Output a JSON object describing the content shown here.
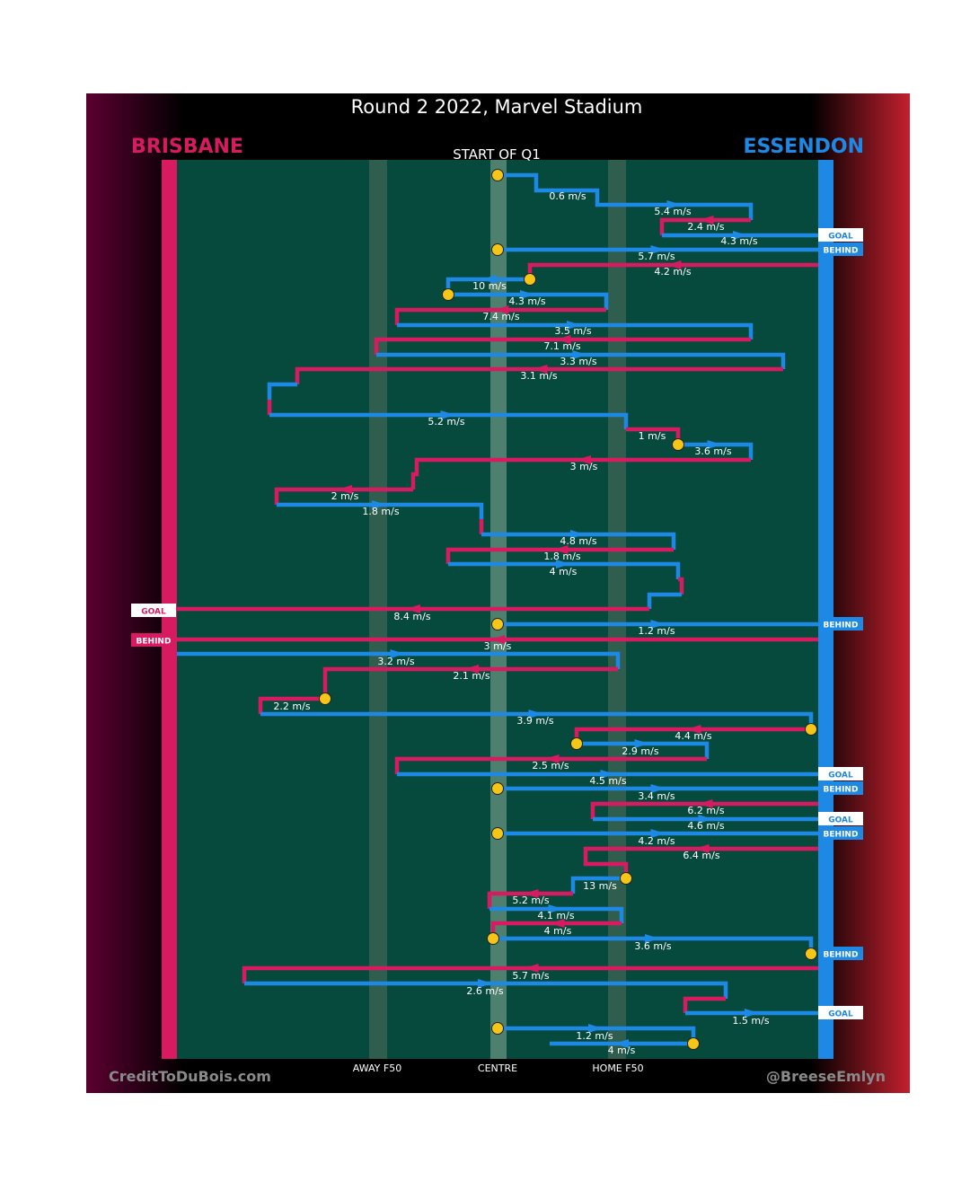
{
  "title": "Round 2 2022, Marvel Stadium",
  "teams": {
    "left": {
      "name": "BRISBANE",
      "color": "#d81b60"
    },
    "right": {
      "name": "ESSENDON",
      "color": "#1e88e5"
    }
  },
  "start_label": "START OF Q1",
  "field_labels": {
    "away_f50": "AWAY F50",
    "centre": "CENTRE",
    "home_f50": "HOME F50"
  },
  "footer": {
    "left": "CreditToDuBois.com",
    "right": "@BreeseEmlyn"
  },
  "colors": {
    "field": "#064a3e",
    "stripe": "#2f5e4e",
    "centre_stripe": "#4e8070",
    "marker": "#f5c518",
    "background": "#000000"
  },
  "chart_data": {
    "type": "line",
    "description_axes": {
      "x": "field position (Brisbane goal → Essendon goal)",
      "y": "chain sequence"
    },
    "x_reference": [
      "AWAY F50",
      "CENTRE",
      "HOME F50"
    ],
    "labels": [
      {
        "team": "ESS",
        "speed": "0.6 m/s"
      },
      {
        "team": "ESS",
        "speed": "5.4 m/s"
      },
      {
        "team": "BRI",
        "speed": "2.4 m/s"
      },
      {
        "team": "ESS",
        "speed": "4.3 m/s",
        "result": "GOAL"
      },
      {
        "team": "ESS",
        "speed": "5.7 m/s",
        "result": "BEHIND"
      },
      {
        "team": "BRI",
        "speed": "4.2 m/s"
      },
      {
        "team": "ESS",
        "speed": "10 m/s"
      },
      {
        "team": "ESS",
        "speed": "4.3 m/s"
      },
      {
        "team": "BRI",
        "speed": "7.4 m/s"
      },
      {
        "team": "ESS",
        "speed": "3.5 m/s"
      },
      {
        "team": "BRI",
        "speed": "7.1 m/s"
      },
      {
        "team": "ESS",
        "speed": "3.3 m/s"
      },
      {
        "team": "BRI",
        "speed": "3.1 m/s"
      },
      {
        "team": "ESS",
        "speed": "5.2 m/s"
      },
      {
        "team": "BRI",
        "speed": "1 m/s"
      },
      {
        "team": "ESS",
        "speed": "3.6 m/s"
      },
      {
        "team": "BRI",
        "speed": "3 m/s"
      },
      {
        "team": "BRI",
        "speed": "2 m/s"
      },
      {
        "team": "ESS",
        "speed": "1.8 m/s"
      },
      {
        "team": "ESS",
        "speed": "4.8 m/s"
      },
      {
        "team": "BRI",
        "speed": "1.8 m/s"
      },
      {
        "team": "ESS",
        "speed": "4 m/s"
      },
      {
        "team": "BRI",
        "speed": "8.4 m/s",
        "result": "GOAL"
      },
      {
        "team": "ESS",
        "speed": "1.2 m/s",
        "result": "BEHIND"
      },
      {
        "team": "BRI",
        "speed": "3 m/s",
        "result": "BEHIND"
      },
      {
        "team": "ESS",
        "speed": "3.2 m/s"
      },
      {
        "team": "BRI",
        "speed": "2.1 m/s"
      },
      {
        "team": "BRI",
        "speed": "2.2 m/s"
      },
      {
        "team": "ESS",
        "speed": "3.9 m/s"
      },
      {
        "team": "BRI",
        "speed": "4.4 m/s"
      },
      {
        "team": "ESS",
        "speed": "2.9 m/s"
      },
      {
        "team": "BRI",
        "speed": "2.5 m/s"
      },
      {
        "team": "ESS",
        "speed": "4.5 m/s",
        "result": "GOAL"
      },
      {
        "team": "ESS",
        "speed": "3.4 m/s",
        "result": "BEHIND"
      },
      {
        "team": "BRI",
        "speed": "6.2 m/s"
      },
      {
        "team": "ESS",
        "speed": "4.6 m/s",
        "result": "GOAL"
      },
      {
        "team": "ESS",
        "speed": "4.2 m/s",
        "result": "BEHIND"
      },
      {
        "team": "BRI",
        "speed": "6.4 m/s"
      },
      {
        "team": "ESS",
        "speed": "13 m/s"
      },
      {
        "team": "BRI",
        "speed": "5.2 m/s"
      },
      {
        "team": "ESS",
        "speed": "4.1 m/s"
      },
      {
        "team": "BRI",
        "speed": "4 m/s"
      },
      {
        "team": "ESS",
        "speed": "3.6 m/s",
        "result": "BEHIND"
      },
      {
        "team": "BRI",
        "speed": "5.7 m/s"
      },
      {
        "team": "ESS",
        "speed": "2.6 m/s"
      },
      {
        "team": "ESS",
        "speed": "1.5 m/s",
        "result": "GOAL"
      },
      {
        "team": "ESS",
        "speed": "1.2 m/s"
      },
      {
        "team": "ESS",
        "speed": "4 m/s"
      }
    ]
  }
}
